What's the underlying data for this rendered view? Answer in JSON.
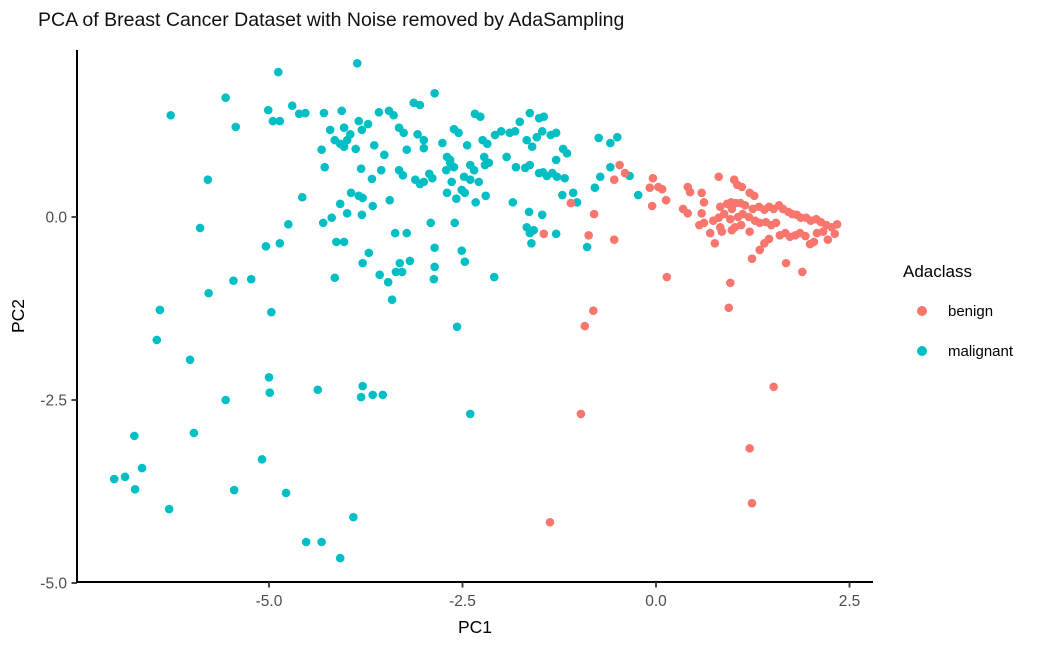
{
  "chart_data": {
    "type": "scatter",
    "title": "PCA of Breast Cancer Dataset with Noise removed by AdaSampling",
    "xlabel": "PC1",
    "ylabel": "PC2",
    "xlim": [
      -7.48,
      2.8
    ],
    "ylim": [
      -4.99,
      2.28
    ],
    "grid": false,
    "background": "#ffffff",
    "axis_color": "#000000",
    "tick_label_color": "#4D4D4D",
    "x_ticks": [
      -5.0,
      -2.5,
      0.0,
      2.5
    ],
    "x_tick_labels": [
      "-5.0",
      "-2.5",
      "0.0",
      "2.5"
    ],
    "y_ticks": [
      0.0,
      -2.5,
      -5.0
    ],
    "y_tick_labels": [
      "0.0",
      "-2.5",
      "-5.0"
    ],
    "legend_title": "Adaclass",
    "legend_position": "right",
    "series": [
      {
        "name": "benign",
        "color": "#F8766D",
        "points": [
          [
            -1.1,
            0.19
          ],
          [
            -0.8,
            0.04
          ],
          [
            -0.54,
            0.51
          ],
          [
            -0.47,
            0.71
          ],
          [
            -0.4,
            0.6
          ],
          [
            -0.04,
            0.53
          ],
          [
            -0.08,
            0.4
          ],
          [
            0.03,
            0.41
          ],
          [
            0.08,
            0.38
          ],
          [
            0.13,
            0.23
          ],
          [
            -0.05,
            0.15
          ],
          [
            0.41,
            0.41
          ],
          [
            0.44,
            0.34
          ],
          [
            0.59,
            0.33
          ],
          [
            0.62,
            0.2
          ],
          [
            0.81,
            0.55
          ],
          [
            1.01,
            0.51
          ],
          [
            1.05,
            0.44
          ],
          [
            1.11,
            0.41
          ],
          [
            1.21,
            0.33
          ],
          [
            1.27,
            0.29
          ],
          [
            0.97,
            0.2
          ],
          [
            1.03,
            0.19
          ],
          [
            1.09,
            0.19
          ],
          [
            1.15,
            0.16
          ],
          [
            0.83,
            0.14
          ],
          [
            0.92,
            0.18
          ],
          [
            0.98,
            0.11
          ],
          [
            0.88,
            0.04
          ],
          [
            0.81,
            -0.01
          ],
          [
            0.96,
            -0.03
          ],
          [
            1.06,
            0.0
          ],
          [
            1.12,
            0.04
          ],
          [
            1.2,
            0.0
          ],
          [
            1.25,
            0.11
          ],
          [
            1.33,
            0.14
          ],
          [
            1.4,
            0.1
          ],
          [
            1.46,
            0.14
          ],
          [
            1.52,
            0.11
          ],
          [
            1.59,
            0.16
          ],
          [
            1.64,
            0.11
          ],
          [
            1.71,
            0.07
          ],
          [
            1.76,
            0.04
          ],
          [
            1.82,
            0.03
          ],
          [
            1.87,
            -0.01
          ],
          [
            1.94,
            -0.01
          ],
          [
            2.0,
            -0.05
          ],
          [
            2.07,
            -0.03
          ],
          [
            2.13,
            -0.07
          ],
          [
            2.2,
            -0.11
          ],
          [
            2.27,
            -0.14
          ],
          [
            2.34,
            -0.1
          ],
          [
            1.28,
            -0.05
          ],
          [
            1.34,
            -0.08
          ],
          [
            1.42,
            -0.07
          ],
          [
            1.49,
            -0.11
          ],
          [
            1.55,
            -0.08
          ],
          [
            1.1,
            -0.11
          ],
          [
            1.02,
            -0.14
          ],
          [
            0.83,
            -0.14
          ],
          [
            0.62,
            -0.08
          ],
          [
            0.56,
            -0.11
          ],
          [
            0.41,
            0.05
          ],
          [
            0.35,
            0.11
          ],
          [
            0.59,
            0.05
          ],
          [
            0.74,
            -0.05
          ],
          [
            -1.45,
            -0.23
          ],
          [
            -0.87,
            -0.25
          ],
          [
            -0.54,
            -0.31
          ],
          [
            -0.81,
            -1.28
          ],
          [
            -0.92,
            -1.49
          ],
          [
            0.7,
            -0.22
          ],
          [
            0.76,
            -0.36
          ],
          [
            0.85,
            -0.2
          ],
          [
            0.98,
            -0.18
          ],
          [
            1.21,
            -0.2
          ],
          [
            1.34,
            -0.45
          ],
          [
            1.4,
            -0.36
          ],
          [
            1.46,
            -0.3
          ],
          [
            1.24,
            -0.57
          ],
          [
            1.6,
            -0.25
          ],
          [
            1.67,
            -0.22
          ],
          [
            1.73,
            -0.27
          ],
          [
            1.8,
            -0.25
          ],
          [
            1.86,
            -0.22
          ],
          [
            1.93,
            -0.26
          ],
          [
            1.99,
            -0.37
          ],
          [
            2.04,
            -0.34
          ],
          [
            2.08,
            -0.22
          ],
          [
            2.16,
            -0.2
          ],
          [
            2.22,
            -0.31
          ],
          [
            2.31,
            -0.23
          ],
          [
            1.68,
            -0.63
          ],
          [
            1.89,
            -0.75
          ],
          [
            0.14,
            -0.82
          ],
          [
            0.96,
            -0.9
          ],
          [
            0.94,
            -1.24
          ],
          [
            1.52,
            -2.32
          ],
          [
            -0.97,
            -2.69
          ],
          [
            -1.37,
            -4.17
          ],
          [
            1.21,
            -3.16
          ],
          [
            1.24,
            -3.91
          ]
        ]
      },
      {
        "name": "malignant",
        "color": "#00BFC4",
        "points": [
          [
            -4.88,
            1.98
          ],
          [
            -5.56,
            1.63
          ],
          [
            -6.27,
            1.39
          ],
          [
            -5.01,
            1.46
          ],
          [
            -4.7,
            1.52
          ],
          [
            -4.61,
            1.41
          ],
          [
            -4.53,
            1.42
          ],
          [
            -4.95,
            1.31
          ],
          [
            -4.86,
            1.31
          ],
          [
            -5.43,
            1.23
          ],
          [
            -4.29,
            1.42
          ],
          [
            -4.06,
            1.45
          ],
          [
            -4.21,
            1.19
          ],
          [
            -4.03,
            1.22
          ],
          [
            -4.15,
            1.05
          ],
          [
            -4.08,
            1.0
          ],
          [
            -4.32,
            0.92
          ],
          [
            -4.03,
            0.96
          ],
          [
            -4.28,
            0.68
          ],
          [
            -5.79,
            0.51
          ],
          [
            -4.57,
            0.27
          ],
          [
            -4.08,
            0.18
          ],
          [
            -4.75,
            -0.1
          ],
          [
            -4.3,
            -0.08
          ],
          [
            -4.19,
            -0.01
          ],
          [
            -5.89,
            -0.15
          ],
          [
            -3.86,
            2.1
          ],
          [
            -2.86,
            1.69
          ],
          [
            -3.13,
            1.56
          ],
          [
            -3.05,
            1.53
          ],
          [
            -3.58,
            1.43
          ],
          [
            -3.45,
            1.45
          ],
          [
            -3.39,
            1.39
          ],
          [
            -3.84,
            1.31
          ],
          [
            -3.72,
            1.27
          ],
          [
            -3.8,
            1.19
          ],
          [
            -3.95,
            1.13
          ],
          [
            -3.99,
            1.05
          ],
          [
            -3.32,
            1.22
          ],
          [
            -3.26,
            1.15
          ],
          [
            -3.08,
            1.13
          ],
          [
            -3.0,
            1.05
          ],
          [
            -3.64,
            0.98
          ],
          [
            -3.88,
            0.93
          ],
          [
            -3.51,
            0.85
          ],
          [
            -3.22,
            0.92
          ],
          [
            -3.0,
            0.94
          ],
          [
            -2.76,
            1.01
          ],
          [
            -2.61,
            1.2
          ],
          [
            -2.55,
            1.15
          ],
          [
            -2.66,
            0.78
          ],
          [
            -2.44,
            0.98
          ],
          [
            -2.34,
            1.41
          ],
          [
            -2.27,
            1.37
          ],
          [
            -2.24,
            1.05
          ],
          [
            -2.18,
            1.0
          ],
          [
            -2.22,
            0.82
          ],
          [
            -2.08,
            1.12
          ],
          [
            -2.0,
            1.17
          ],
          [
            -1.89,
            1.15
          ],
          [
            -1.82,
            1.17
          ],
          [
            -1.76,
            1.3
          ],
          [
            -1.63,
            1.42
          ],
          [
            -1.51,
            1.35
          ],
          [
            -1.45,
            1.37
          ],
          [
            -1.36,
            1.12
          ],
          [
            -1.29,
            1.15
          ],
          [
            -1.47,
            1.17
          ],
          [
            -1.67,
            1.05
          ],
          [
            -1.6,
            0.96
          ],
          [
            -1.54,
            1.09
          ],
          [
            -1.2,
            0.93
          ],
          [
            -1.15,
            0.87
          ],
          [
            -1.29,
            0.78
          ],
          [
            -1.93,
            0.82
          ],
          [
            -1.69,
            0.67
          ],
          [
            -1.63,
            0.71
          ],
          [
            -1.81,
            0.68
          ],
          [
            -1.51,
            0.6
          ],
          [
            -1.46,
            0.61
          ],
          [
            -1.41,
            0.56
          ],
          [
            -1.34,
            0.6
          ],
          [
            -1.28,
            0.55
          ],
          [
            -1.18,
            0.53
          ],
          [
            -2.21,
            0.71
          ],
          [
            -2.16,
            0.74
          ],
          [
            -2.4,
            0.71
          ],
          [
            -2.35,
            0.64
          ],
          [
            -2.29,
            0.48
          ],
          [
            -2.4,
            0.51
          ],
          [
            -2.48,
            0.55
          ],
          [
            -2.7,
            0.82
          ],
          [
            -2.66,
            0.74
          ],
          [
            -2.61,
            0.68
          ],
          [
            -2.71,
            0.64
          ],
          [
            -2.64,
            0.48
          ],
          [
            -2.51,
            0.37
          ],
          [
            -2.47,
            0.33
          ],
          [
            -2.7,
            0.33
          ],
          [
            -2.93,
            0.59
          ],
          [
            -2.89,
            0.53
          ],
          [
            -3.32,
            0.64
          ],
          [
            -3.27,
            0.57
          ],
          [
            -3.55,
            0.64
          ],
          [
            -3.81,
            0.66
          ],
          [
            -3.67,
            0.52
          ],
          [
            -3.11,
            0.51
          ],
          [
            -3.05,
            0.45
          ],
          [
            -3.0,
            0.48
          ],
          [
            -3.44,
            0.23
          ],
          [
            -3.84,
            0.29
          ],
          [
            -3.79,
            0.26
          ],
          [
            -3.94,
            0.33
          ],
          [
            -3.66,
            0.15
          ],
          [
            -3.99,
            0.05
          ],
          [
            -3.8,
            0.03
          ],
          [
            -2.58,
            0.25
          ],
          [
            -2.33,
            0.2
          ],
          [
            -2.2,
            0.29
          ],
          [
            -1.85,
            0.2
          ],
          [
            -1.64,
            0.07
          ],
          [
            -1.47,
            0.03
          ],
          [
            -1.07,
            0.33
          ],
          [
            -1.21,
            0.3
          ],
          [
            -1.02,
            0.2
          ],
          [
            -0.79,
            0.4
          ],
          [
            -0.72,
            0.55
          ],
          [
            -0.59,
            0.68
          ],
          [
            -0.74,
            1.08
          ],
          [
            -0.59,
            1.01
          ],
          [
            -2.91,
            -0.08
          ],
          [
            -2.6,
            -0.08
          ],
          [
            -1.67,
            -0.14
          ],
          [
            -0.5,
            1.09
          ],
          [
            -0.34,
            0.56
          ],
          [
            -0.23,
            0.3
          ],
          [
            -5.04,
            -0.4
          ],
          [
            -4.86,
            -0.36
          ],
          [
            -4.13,
            -0.34
          ],
          [
            -4.03,
            -0.34
          ],
          [
            -5.46,
            -0.87
          ],
          [
            -5.23,
            -0.85
          ],
          [
            -4.15,
            -0.83
          ],
          [
            -5.78,
            -1.04
          ],
          [
            -6.41,
            -1.27
          ],
          [
            -4.97,
            -1.3
          ],
          [
            -6.45,
            -1.68
          ],
          [
            -6.02,
            -1.95
          ],
          [
            -5.0,
            -2.19
          ],
          [
            -4.99,
            -2.4
          ],
          [
            -4.37,
            -2.36
          ],
          [
            -5.56,
            -2.5
          ],
          [
            -3.37,
            -0.22
          ],
          [
            -3.22,
            -0.22
          ],
          [
            -3.71,
            -0.49
          ],
          [
            -3.79,
            -0.63
          ],
          [
            -3.57,
            -0.79
          ],
          [
            -3.46,
            -0.89
          ],
          [
            -3.31,
            -0.63
          ],
          [
            -3.18,
            -0.6
          ],
          [
            -3.36,
            -0.75
          ],
          [
            -3.28,
            -0.75
          ],
          [
            -2.86,
            -0.42
          ],
          [
            -2.86,
            -0.68
          ],
          [
            -2.87,
            -0.85
          ],
          [
            -2.51,
            -0.46
          ],
          [
            -2.47,
            -0.61
          ],
          [
            -2.09,
            -0.82
          ],
          [
            -3.41,
            -1.13
          ],
          [
            -2.57,
            -1.5
          ],
          [
            -3.79,
            -2.31
          ],
          [
            -3.81,
            -2.46
          ],
          [
            -3.66,
            -2.43
          ],
          [
            -3.53,
            -2.43
          ],
          [
            -1.63,
            -0.22
          ],
          [
            -1.58,
            -0.18
          ],
          [
            -1.29,
            -0.23
          ],
          [
            -1.61,
            -0.36
          ],
          [
            -0.89,
            -0.41
          ],
          [
            -6.74,
            -2.99
          ],
          [
            -5.97,
            -2.95
          ],
          [
            -6.64,
            -3.43
          ],
          [
            -7.0,
            -3.58
          ],
          [
            -6.86,
            -3.55
          ],
          [
            -6.73,
            -3.72
          ],
          [
            -5.09,
            -3.31
          ],
          [
            -5.45,
            -3.73
          ],
          [
            -4.78,
            -3.77
          ],
          [
            -6.29,
            -3.99
          ],
          [
            -4.52,
            -4.44
          ],
          [
            -4.32,
            -4.44
          ],
          [
            -4.08,
            -4.66
          ],
          [
            -2.4,
            -2.69
          ],
          [
            -3.91,
            -4.1
          ]
        ]
      }
    ]
  }
}
